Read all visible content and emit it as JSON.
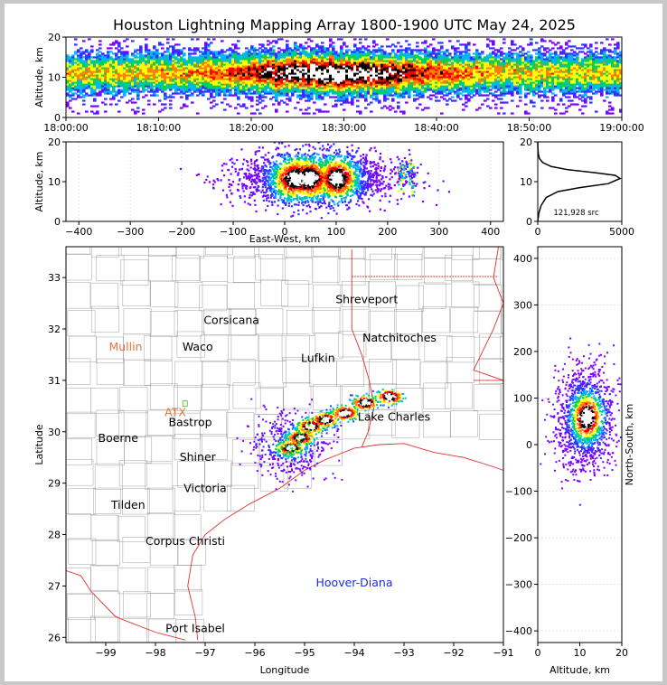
{
  "title": "Houston Lightning Mapping Array 1800-1900 UTC May 24, 2025",
  "colors": {
    "density_scale": [
      "#7a00ff",
      "#3333ff",
      "#00b4ff",
      "#00d060",
      "#ffff00",
      "#ff8000",
      "#ff0000",
      "#000000",
      "#ffffff"
    ],
    "state_border": "#e03030",
    "county_border": "#a0a0a0",
    "city_label": "#000000",
    "highlight_city": "#e8703a",
    "marine_label": "#1a2ee0"
  },
  "chart_data": [
    {
      "type": "heatmap",
      "name": "altitude-time",
      "xlabel": "",
      "ylabel": "Altitude, km",
      "xlim": [
        "18:00:00",
        "19:00:00"
      ],
      "ylim": [
        0,
        20
      ],
      "xticks": [
        "18:00:00",
        "18:10:00",
        "18:20:00",
        "18:30:00",
        "18:40:00",
        "18:50:00",
        "19:00:00"
      ],
      "yticks": [
        "0",
        "10",
        "20"
      ],
      "band_center_km": 11,
      "band_halfwidth_km": 5
    },
    {
      "type": "heatmap",
      "name": "altitude-eastwest",
      "xlabel": "East-West, km",
      "ylabel": "Altitude, km",
      "xlim": [
        -425,
        425
      ],
      "ylim": [
        0,
        20
      ],
      "xticks": [
        "−400",
        "−300",
        "−200",
        "−100",
        "0",
        "100",
        "200",
        "300",
        "400"
      ],
      "yticks": [
        "0",
        "10",
        "20"
      ],
      "cores_km": [
        [
          20,
          11
        ],
        [
          45,
          11
        ],
        [
          95,
          11
        ]
      ]
    },
    {
      "type": "line",
      "name": "altitude-histogram",
      "xlabel": "",
      "ylabel": "",
      "xlim": [
        0,
        5000
      ],
      "ylim": [
        0,
        20
      ],
      "xticks": [
        "0",
        "5000"
      ],
      "yticks": [
        "0",
        "10",
        "20"
      ],
      "annotation": "121,928 src",
      "x": [
        0,
        60,
        200,
        500,
        1200,
        2500,
        4200,
        4900,
        4600,
        3300,
        1800,
        800,
        300,
        100,
        30,
        5,
        0
      ],
      "y": [
        0,
        2,
        4,
        6,
        7.5,
        8.5,
        9.5,
        10.8,
        11.6,
        12.3,
        13.0,
        13.8,
        14.8,
        15.8,
        17,
        18.5,
        20
      ]
    },
    {
      "type": "heatmap",
      "name": "plan-view-map",
      "xlabel": "Longitude",
      "ylabel": "Latitude",
      "xlim": [
        -99.8,
        -91
      ],
      "ylim": [
        25.9,
        33.6
      ],
      "xticks": [
        "−99",
        "−98",
        "−97",
        "−96",
        "−95",
        "−94",
        "−93",
        "−92",
        "−91"
      ],
      "yticks": [
        "26",
        "27",
        "28",
        "29",
        "30",
        "31",
        "32",
        "33"
      ],
      "cities": [
        {
          "name": "Shreveport",
          "lon": -93.75,
          "lat": 32.5,
          "kind": "city"
        },
        {
          "name": "Corsicana",
          "lon": -96.47,
          "lat": 32.1,
          "kind": "city"
        },
        {
          "name": "Natchitoches",
          "lon": -93.09,
          "lat": 31.75,
          "kind": "city"
        },
        {
          "name": "Mullin",
          "lon": -98.6,
          "lat": 31.58,
          "kind": "highlight"
        },
        {
          "name": "Waco",
          "lon": -97.15,
          "lat": 31.58,
          "kind": "city"
        },
        {
          "name": "Lufkin",
          "lon": -94.73,
          "lat": 31.36,
          "kind": "city"
        },
        {
          "name": "ATX",
          "lon": -97.6,
          "lat": 30.3,
          "kind": "highlight"
        },
        {
          "name": "Bastrop",
          "lon": -97.3,
          "lat": 30.11,
          "kind": "city"
        },
        {
          "name": "Lake Charles",
          "lon": -93.2,
          "lat": 30.22,
          "kind": "city"
        },
        {
          "name": "Boerne",
          "lon": -98.75,
          "lat": 29.8,
          "kind": "city"
        },
        {
          "name": "Shiner",
          "lon": -97.15,
          "lat": 29.43,
          "kind": "city"
        },
        {
          "name": "Victoria",
          "lon": -97.0,
          "lat": 28.83,
          "kind": "city"
        },
        {
          "name": "Tilden",
          "lon": -98.55,
          "lat": 28.5,
          "kind": "city"
        },
        {
          "name": "Corpus Christi",
          "lon": -97.4,
          "lat": 27.8,
          "kind": "city"
        },
        {
          "name": "Hoover-Diana",
          "lon": -94.0,
          "lat": 26.99,
          "kind": "marine"
        },
        {
          "name": "Port Isabel",
          "lon": -97.2,
          "lat": 26.1,
          "kind": "city"
        }
      ]
    },
    {
      "type": "heatmap",
      "name": "northsouth-altitude",
      "xlabel": "Altitude, km",
      "ylabel": "North-South, km",
      "xlim": [
        0,
        20
      ],
      "ylim": [
        -425,
        425
      ],
      "xticks": [
        "0",
        "10",
        "20"
      ],
      "yticks": [
        "−400",
        "−300",
        "−200",
        "−100",
        "0",
        "100",
        "200",
        "300",
        "400"
      ]
    }
  ]
}
